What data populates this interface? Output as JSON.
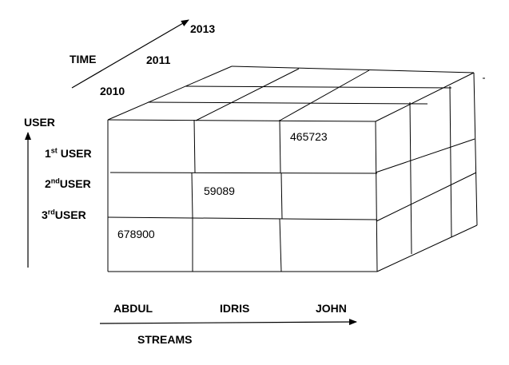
{
  "time_axis": {
    "title": "TIME",
    "years": [
      "2010",
      "2011",
      "2013"
    ]
  },
  "user_axis": {
    "title": "USER",
    "rows": [
      {
        "num": "1",
        "suffix": "st",
        "word": " USER"
      },
      {
        "num": "2",
        "suffix": "nd",
        "word": "USER"
      },
      {
        "num": "3",
        "suffix": "rd",
        "word": "USER"
      }
    ]
  },
  "streams_axis": {
    "title": "STREAMS",
    "columns": [
      "ABDUL",
      "IDRIS",
      "JOHN"
    ]
  },
  "cells": {
    "row1_john": "465723",
    "row2_idris": "59089",
    "row3_abdul": "678900"
  },
  "colors": {
    "line": "#000000",
    "background": "#ffffff"
  }
}
